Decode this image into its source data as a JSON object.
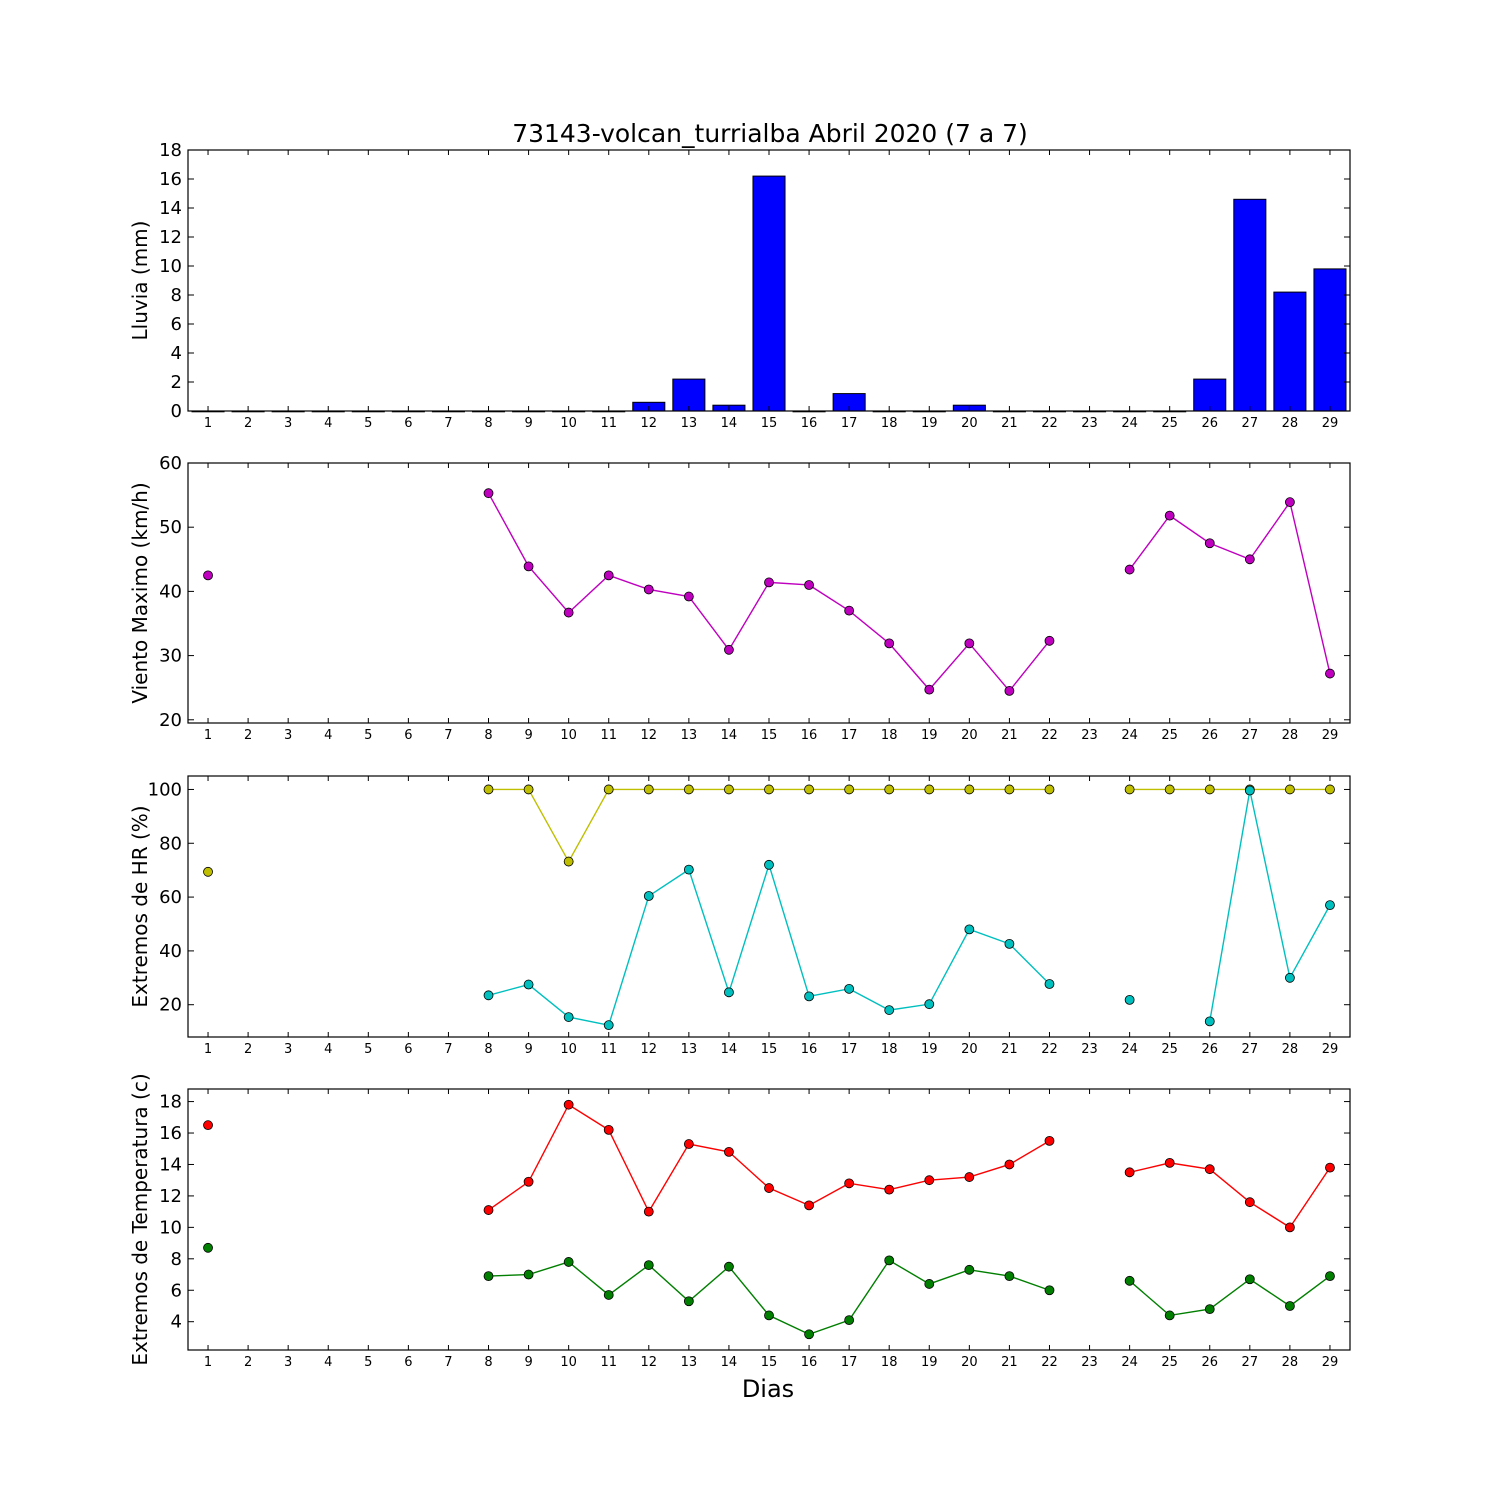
{
  "title": "73143-volcan_turrialba Abril 2020  (7 a 7)",
  "xlabel": "Dias",
  "chart_data": [
    {
      "type": "bar",
      "ylabel": "Lluvia (mm)",
      "ylim": [
        0,
        18
      ],
      "yticks": [
        0,
        2,
        4,
        6,
        8,
        10,
        12,
        14,
        16,
        18
      ],
      "x": [
        1,
        2,
        3,
        4,
        5,
        6,
        7,
        8,
        9,
        10,
        11,
        12,
        13,
        14,
        15,
        16,
        17,
        18,
        19,
        20,
        21,
        22,
        23,
        24,
        25,
        26,
        27,
        28,
        29
      ],
      "xticks": [
        "1",
        "2",
        "3",
        "4",
        "5",
        "6",
        "7",
        "8",
        "9",
        "10",
        "11",
        "12",
        "13",
        "14",
        "15",
        "16",
        "17",
        "18",
        "19",
        "20",
        "21",
        "22",
        "23",
        "24",
        "25",
        "26",
        "27",
        "28",
        "29"
      ],
      "series": [
        {
          "color": "#0000ff",
          "values": [
            0,
            0,
            0,
            0,
            0,
            0,
            0,
            0,
            0,
            0,
            0,
            0.6,
            2.2,
            0.4,
            16.2,
            0,
            1.2,
            0,
            0,
            0.4,
            0,
            0,
            0,
            0,
            0,
            2.2,
            14.6,
            8.2,
            9.8
          ]
        }
      ]
    },
    {
      "type": "line",
      "ylabel": "Viento Maximo (km/h)",
      "ylim": [
        19.5,
        60
      ],
      "yticks": [
        20,
        30,
        40,
        50,
        60
      ],
      "x": [
        1,
        2,
        3,
        4,
        5,
        6,
        7,
        8,
        9,
        10,
        11,
        12,
        13,
        14,
        15,
        16,
        17,
        18,
        19,
        20,
        21,
        22,
        23,
        24,
        25,
        26,
        27,
        28,
        29
      ],
      "xticks": [
        "1",
        "2",
        "3",
        "4",
        "5",
        "6",
        "7",
        "8",
        "9",
        "10",
        "11",
        "12",
        "13",
        "14",
        "15",
        "16",
        "17",
        "18",
        "19",
        "20",
        "21",
        "22",
        "23",
        "24",
        "25",
        "26",
        "27",
        "28",
        "29"
      ],
      "series": [
        {
          "color": "#bf00bf",
          "values": [
            42.5,
            null,
            null,
            null,
            null,
            null,
            null,
            55.3,
            43.9,
            36.7,
            42.5,
            40.3,
            39.2,
            30.9,
            41.4,
            41.0,
            37.0,
            31.9,
            24.7,
            31.9,
            24.5,
            32.3,
            null,
            43.4,
            51.8,
            47.5,
            45.0,
            53.9,
            27.2
          ]
        }
      ]
    },
    {
      "type": "line",
      "ylabel": "Extremos de HR (%)",
      "ylim": [
        8,
        105
      ],
      "yticks": [
        20,
        40,
        60,
        80,
        100
      ],
      "x": [
        1,
        2,
        3,
        4,
        5,
        6,
        7,
        8,
        9,
        10,
        11,
        12,
        13,
        14,
        15,
        16,
        17,
        18,
        19,
        20,
        21,
        22,
        23,
        24,
        25,
        26,
        27,
        28,
        29
      ],
      "xticks": [
        "1",
        "2",
        "3",
        "4",
        "5",
        "6",
        "7",
        "8",
        "9",
        "10",
        "11",
        "12",
        "13",
        "14",
        "15",
        "16",
        "17",
        "18",
        "19",
        "20",
        "21",
        "22",
        "23",
        "24",
        "25",
        "26",
        "27",
        "28",
        "29"
      ],
      "series": [
        {
          "color": "#bfbf00",
          "values": [
            69.4,
            null,
            null,
            null,
            null,
            null,
            null,
            100,
            100,
            73.2,
            100,
            100,
            100,
            100,
            100,
            100,
            100,
            100,
            100,
            100,
            100,
            100,
            null,
            100,
            100,
            100,
            100,
            100,
            100
          ]
        },
        {
          "color": "#00bfbf",
          "values": [
            null,
            null,
            null,
            null,
            null,
            null,
            null,
            23.5,
            27.5,
            15.4,
            12.4,
            60.4,
            70.2,
            24.6,
            72.0,
            23.1,
            25.9,
            18.0,
            20.2,
            48.0,
            42.6,
            27.7,
            null,
            21.8,
            null,
            13.8,
            99.6,
            30.0,
            57.0
          ]
        }
      ]
    },
    {
      "type": "line",
      "ylabel": "Extremos de Temperatura (c)",
      "ylim": [
        2.2,
        18.8
      ],
      "yticks": [
        4,
        6,
        8,
        10,
        12,
        14,
        16,
        18
      ],
      "x": [
        1,
        2,
        3,
        4,
        5,
        6,
        7,
        8,
        9,
        10,
        11,
        12,
        13,
        14,
        15,
        16,
        17,
        18,
        19,
        20,
        21,
        22,
        23,
        24,
        25,
        26,
        27,
        28,
        29
      ],
      "xticks": [
        "1",
        "2",
        "3",
        "4",
        "5",
        "6",
        "7",
        "8",
        "9",
        "10",
        "11",
        "12",
        "13",
        "14",
        "15",
        "16",
        "17",
        "18",
        "19",
        "20",
        "21",
        "22",
        "23",
        "24",
        "25",
        "26",
        "27",
        "28",
        "29"
      ],
      "series": [
        {
          "color": "#ff0000",
          "values": [
            16.5,
            null,
            null,
            null,
            null,
            null,
            null,
            11.1,
            12.9,
            17.8,
            16.2,
            11.0,
            15.3,
            14.8,
            12.5,
            11.4,
            12.8,
            12.4,
            13.0,
            13.2,
            14.0,
            15.5,
            null,
            13.5,
            14.1,
            13.7,
            11.6,
            10.0,
            13.8
          ]
        },
        {
          "color": "#007f00",
          "values": [
            8.7,
            null,
            null,
            null,
            null,
            null,
            null,
            6.9,
            7.0,
            7.8,
            5.7,
            7.6,
            5.3,
            7.5,
            4.4,
            3.2,
            4.1,
            7.9,
            6.4,
            7.3,
            6.9,
            6.0,
            null,
            6.6,
            4.4,
            4.8,
            6.7,
            5.0,
            6.9
          ]
        }
      ]
    }
  ]
}
